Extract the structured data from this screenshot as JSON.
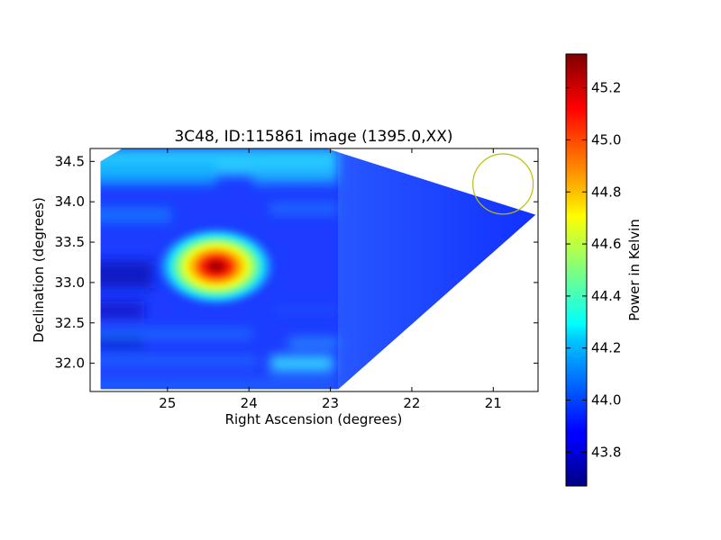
{
  "chart_data": [
    {
      "type": "heatmap",
      "title": "3C48, ID:115861 image (1395.0,XX)",
      "xlabel": "Right Ascension (degrees)",
      "ylabel": "Declination (degrees)",
      "xlim": [
        25.95,
        20.45
      ],
      "ylim": [
        31.65,
        34.66
      ],
      "x_inverted": true,
      "xticks": [
        25,
        24,
        23,
        22,
        21
      ],
      "yticks": [
        32.0,
        32.5,
        33.0,
        33.5,
        34.0,
        34.5
      ],
      "xtick_labels": [
        "25",
        "24",
        "23",
        "22",
        "21"
      ],
      "ytick_labels": [
        "32.0",
        "32.5",
        "33.0",
        "33.5",
        "34.0",
        "34.5"
      ],
      "grid": false,
      "colormap": "jet",
      "coverage_polygon": [
        [
          25.82,
          34.5
        ],
        [
          25.55,
          34.66
        ],
        [
          23.05,
          34.66
        ],
        [
          20.48,
          33.84
        ],
        [
          22.9,
          31.68
        ],
        [
          25.82,
          31.68
        ]
      ],
      "source_peak": {
        "ra": 24.4,
        "dec": 33.2,
        "value": 45.3
      },
      "background_value": 43.95,
      "annotation_circle": {
        "ra": 20.88,
        "dec": 34.22,
        "radius_deg": 0.37,
        "color": "#bfbf00"
      }
    },
    {
      "type": "colorbar",
      "label": "Power in Kelvin",
      "range": [
        43.67,
        45.33
      ],
      "ticks": [
        43.8,
        44.0,
        44.2,
        44.4,
        44.6,
        44.8,
        45.0,
        45.2
      ],
      "tick_labels": [
        "43.8",
        "44.0",
        "44.2",
        "44.4",
        "44.6",
        "44.8",
        "45.0",
        "45.2"
      ],
      "colormap": "jet"
    }
  ]
}
